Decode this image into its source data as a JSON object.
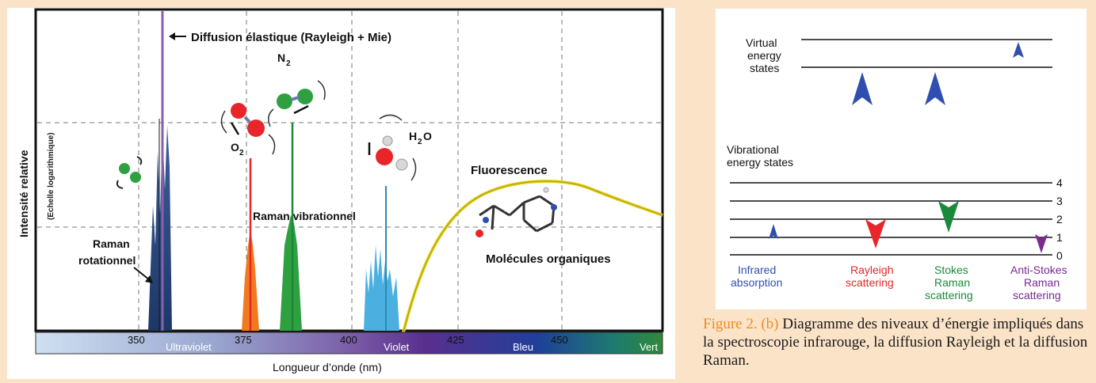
{
  "spectrum": {
    "elastic_label": "Diffusion élastique (Rayleigh + Mie)",
    "n2": "N",
    "n2_sub": "2",
    "o2": "O",
    "o2_sub": "2",
    "h2o_h": "H",
    "h2o_sub": "2",
    "h2o_o": "O",
    "fluorescence": "Fluorescence",
    "raman_vib": "Raman vibrationnel",
    "raman_rot_1": "Raman",
    "raman_rot_2": "rotationnel",
    "organic": "Molécules organiques",
    "ylabel": "Intensité relative",
    "ylabel_sub": "(Echelle logarithmique)",
    "xlabel": "Longueur d’onde (nm)",
    "ticks": [
      "350",
      "375",
      "400",
      "425",
      "450"
    ],
    "bands": [
      "Ultraviolet",
      "Violet",
      "Bleu",
      "Vert"
    ]
  },
  "energy": {
    "virtual_1": "Virtual",
    "virtual_2": "energy",
    "virtual_3": "states",
    "vib_1": "Vibrational",
    "vib_2": "energy states",
    "levels": [
      "4",
      "3",
      "2",
      "1",
      "0"
    ],
    "ir_1": "Infrared",
    "ir_2": "absorption",
    "ray_1": "Rayleigh",
    "ray_2": "scattering",
    "stokes_1": "Stokes",
    "stokes_2": "Raman",
    "stokes_3": "scattering",
    "anti_1": "Anti-Stokes",
    "anti_2": "Raman",
    "anti_3": "scattering",
    "colors": {
      "ir": "#2f4fb0",
      "rayleigh": "#e8262a",
      "stokes": "#1a8a3a",
      "anti": "#7a2a90"
    }
  },
  "caption": {
    "fig": "Figure 2. (b)",
    "text": " Diagramme des niveaux d’énergie impliqués dans la spectroscopie infrarouge, la diffusion Rayleigh et la diffusion Raman."
  }
}
